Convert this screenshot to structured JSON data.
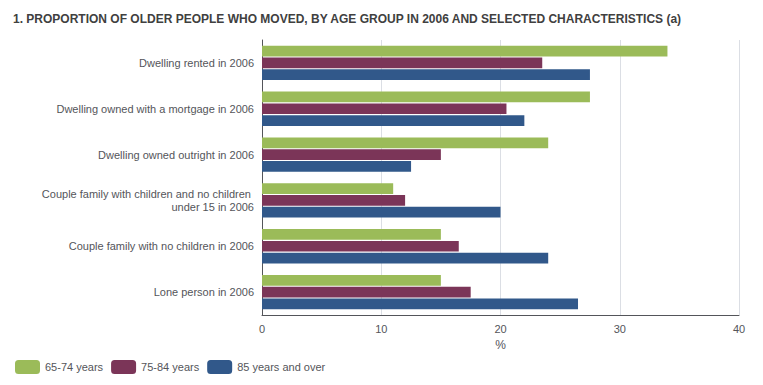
{
  "chart_data": {
    "type": "bar",
    "orientation": "horizontal",
    "title": "1. PROPORTION OF OLDER PEOPLE WHO MOVED, BY AGE GROUP IN 2006 AND SELECTED CHARACTERISTICS (a)",
    "categories": [
      "Dwelling rented in 2006",
      "Dwelling owned with a mortgage in 2006",
      "Dwelling owned outright in 2006",
      "Couple family with children and no children under 15 in 2006",
      "Couple family with no children in 2006",
      "Lone person in 2006"
    ],
    "series": [
      {
        "name": "65-74 years",
        "color": "#9BBB59",
        "values": [
          34.0,
          27.5,
          24.0,
          11.0,
          15.0,
          15.0
        ]
      },
      {
        "name": "75-84 years",
        "color": "#7B3558",
        "values": [
          23.5,
          20.5,
          15.0,
          12.0,
          16.5,
          17.5
        ]
      },
      {
        "name": "85 years and over",
        "color": "#31588A",
        "values": [
          27.5,
          22.0,
          12.5,
          20.0,
          24.0,
          26.5
        ]
      }
    ],
    "xlabel": "%",
    "xlim": [
      0,
      40
    ],
    "xticks": [
      0,
      10,
      20,
      30,
      40
    ],
    "grid": true,
    "legend": "lower left"
  }
}
